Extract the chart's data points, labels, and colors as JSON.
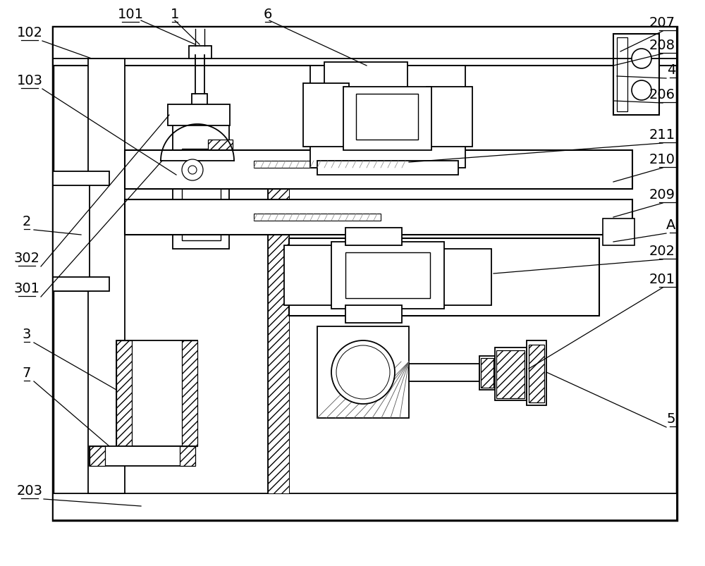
{
  "figsize": [
    10.0,
    8.04
  ],
  "dpi": 100,
  "bg_color": "#ffffff",
  "lc": "#000000",
  "lw": 1.3,
  "tlw": 0.7,
  "fs": 14
}
